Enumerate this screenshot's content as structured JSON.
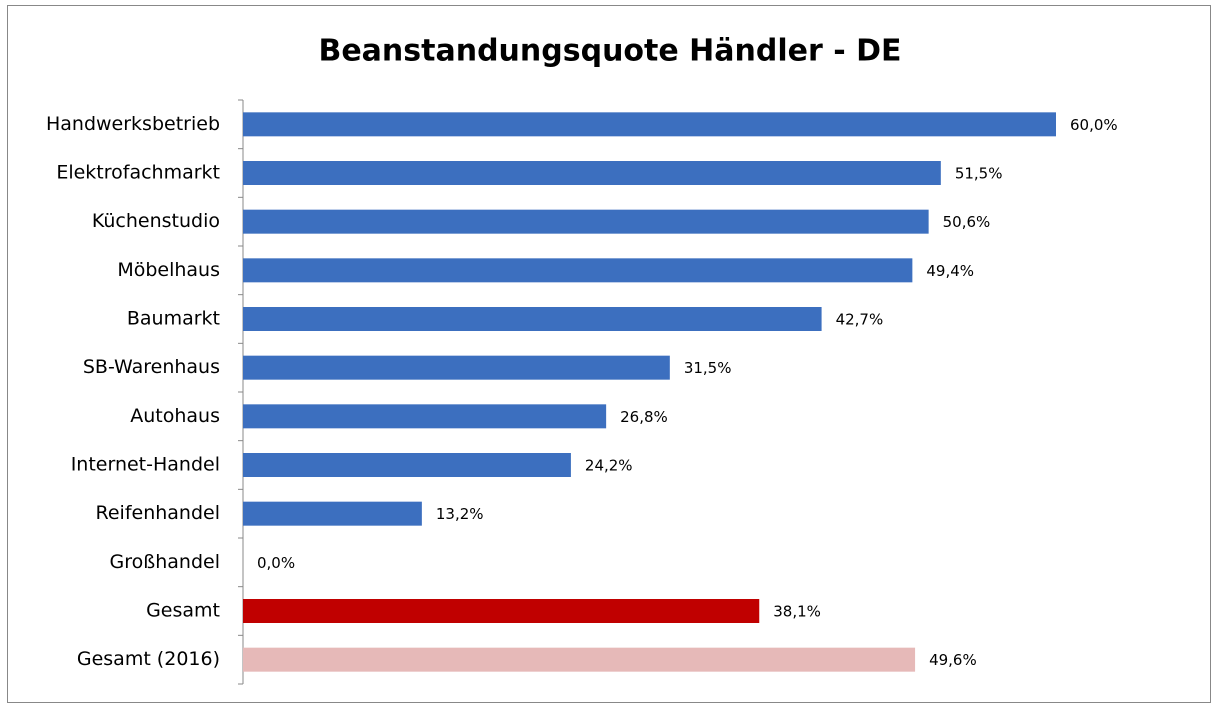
{
  "chart_data": {
    "type": "bar",
    "orientation": "horizontal",
    "title": "Beanstandungsquote Händler - DE",
    "categories": [
      "Handwerksbetrieb",
      "Elektrofachmarkt",
      "Küchenstudio",
      "Möbelhaus",
      "Baumarkt",
      "SB-Warenhaus",
      "Autohaus",
      "Internet-Handel",
      "Reifenhandel",
      "Großhandel",
      "Gesamt",
      "Gesamt (2016)"
    ],
    "values": [
      60.0,
      51.5,
      50.6,
      49.4,
      42.7,
      31.5,
      26.8,
      24.2,
      13.2,
      0.0,
      38.1,
      49.6
    ],
    "value_labels": [
      "60,0%",
      "51,5%",
      "50,6%",
      "49,4%",
      "42,7%",
      "31,5%",
      "26,8%",
      "24,2%",
      "13,2%",
      "0,0%",
      "38,1%",
      "49,6%"
    ],
    "colors": [
      "#3c6fbf",
      "#3c6fbf",
      "#3c6fbf",
      "#3c6fbf",
      "#3c6fbf",
      "#3c6fbf",
      "#3c6fbf",
      "#3c6fbf",
      "#3c6fbf",
      "#3c6fbf",
      "#c00000",
      "#e6b9b8"
    ]
  }
}
